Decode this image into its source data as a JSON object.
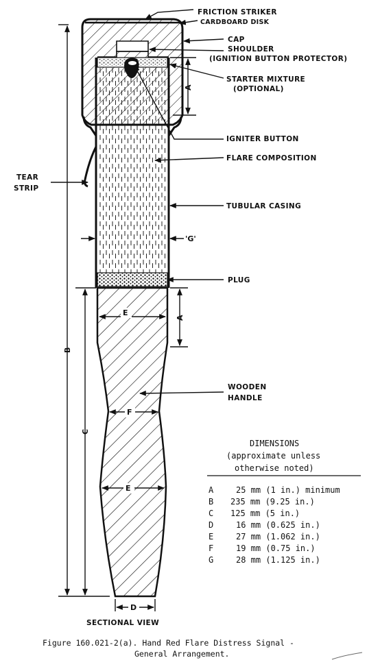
{
  "labels": {
    "friction_striker": "FRICTION STRIKER",
    "cardboard_disk": "CARDBOARD DISK",
    "cap": "CAP",
    "shoulder_line1": "SHOULDER",
    "shoulder_line2": "(IGNITION BUTTON PROTECTOR)",
    "starter_line1": "STARTER MIXTURE",
    "starter_line2": "(OPTIONAL)",
    "igniter_button": "IGNITER BUTTON",
    "flare_composition": "FLARE COMPOSITION",
    "tubular_casing": "TUBULAR CASING",
    "tear_line1": "TEAR",
    "tear_line2": "STRIP",
    "plug": "PLUG",
    "wooden_line1": "WOODEN",
    "wooden_line2": "HANDLE",
    "sectional_view": "SECTIONAL VIEW"
  },
  "dimension_letters": {
    "a_upper": "A",
    "a_lower": "A",
    "b": "B",
    "c": "C",
    "d": "D",
    "e_upper": "E",
    "e_lower": "E",
    "f": "F",
    "g": "'G'"
  },
  "dimensions_table": {
    "title": "DIMENSIONS",
    "subtitle_line1": "(approximate unless",
    "subtitle_line2": "otherwise noted)",
    "rows": [
      {
        "key": "A",
        "value": "25 mm (1 in.) minimum"
      },
      {
        "key": "B",
        "value": "235 mm (9.25 in.)"
      },
      {
        "key": "C",
        "value": "125 mm (5 in.)"
      },
      {
        "key": "D",
        "value": "16 mm (0.625 in.)"
      },
      {
        "key": "E",
        "value": "27 mm (1.062 in.)"
      },
      {
        "key": "F",
        "value": "19 mm (0.75 in.)"
      },
      {
        "key": "G",
        "value": "28 mm (1.125 in.)"
      }
    ]
  },
  "caption": {
    "line1": "Figure 160.021-2(a).  Hand Red Flare Distress Signal -",
    "line2": "General Arrangement."
  }
}
